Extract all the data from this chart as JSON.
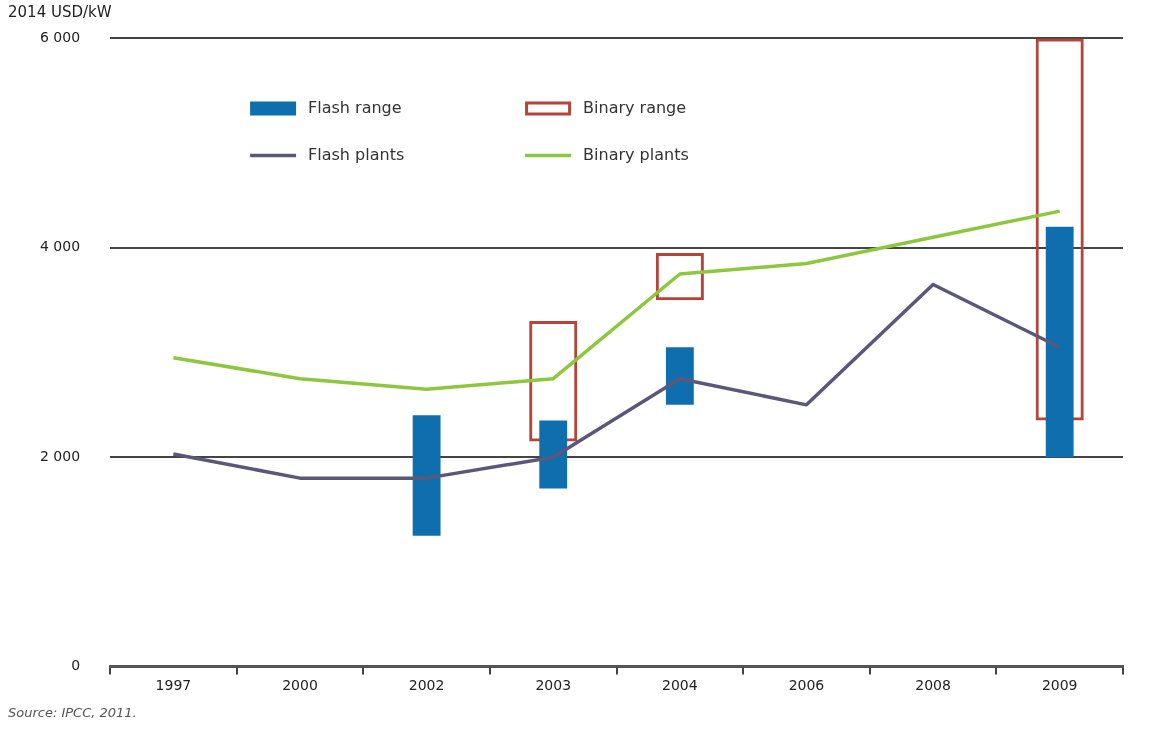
{
  "chart_data": {
    "type": "bar",
    "ylabel": "2014 USD/kW",
    "categories": [
      "1997",
      "2000",
      "2002",
      "2003",
      "2004",
      "2006",
      "2008",
      "2009"
    ],
    "series": [
      {
        "name": "Flash range",
        "color": "#0f6fae",
        "base": [
          null,
          null,
          1250,
          1700,
          2500,
          null,
          null,
          2000
        ],
        "values": [
          null,
          null,
          1150,
          650,
          550,
          null,
          null,
          2200
        ]
      },
      {
        "name": "Binary range",
        "color": "#b5453a",
        "base": [
          null,
          null,
          null,
          2150,
          3500,
          null,
          null,
          2350
        ],
        "values": [
          null,
          null,
          null,
          1150,
          450,
          null,
          null,
          3650
        ]
      },
      {
        "name": "Flash plants",
        "type": "line",
        "color": "#5b5778",
        "values": [
          2030,
          1800,
          1800,
          2000,
          2750,
          2500,
          3650,
          3050
        ]
      },
      {
        "name": "Binary plants",
        "type": "line",
        "color": "#8dc63f",
        "values": [
          2950,
          2750,
          2650,
          2750,
          3750,
          3850,
          4100,
          4350
        ]
      }
    ],
    "ylim": [
      0,
      6000
    ],
    "yticks": [
      {
        "value": 0,
        "label": "0"
      },
      {
        "value": 2000,
        "label": "2 000"
      },
      {
        "value": 4000,
        "label": "4 000"
      },
      {
        "value": 6000,
        "label": "6 000"
      }
    ],
    "grid": "y",
    "legend": "top left",
    "marker": "none",
    "line_style": "solid",
    "annotations": [
      "Source: IPCC, 2011."
    ]
  }
}
